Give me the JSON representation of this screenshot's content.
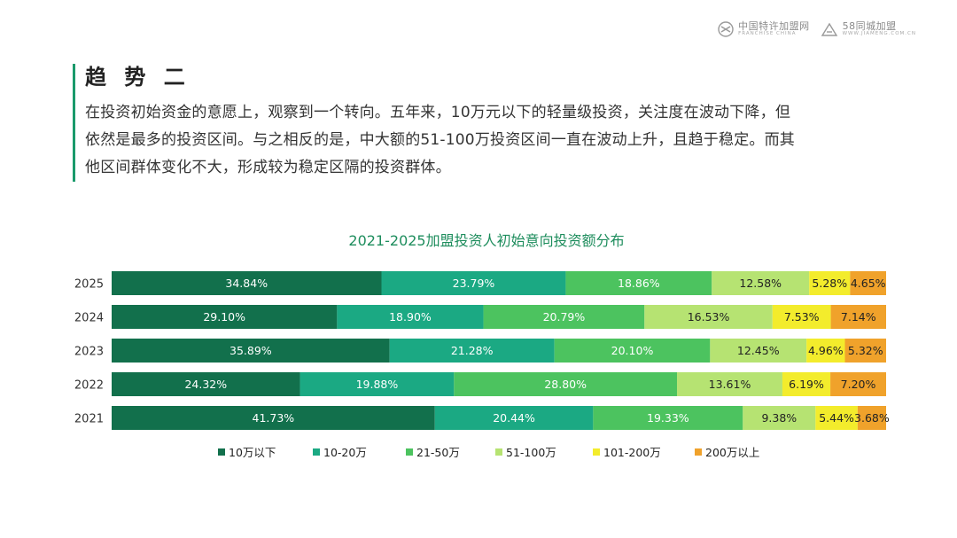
{
  "logos": {
    "left_main": "中国特许加盟网",
    "left_sub": "FRANCHISE CHINA",
    "right_main": "58同城加盟",
    "right_sub": "WWW.JIAMENG.COM.CN"
  },
  "header": {
    "title": "趋 势 二",
    "lines": [
      "在投资初始资金的意愿上，观察到一个转向。五年来，10万元以下的轻量级投资，关注度在波动下降，但",
      "依然是最多的投资区间。与之相反的是，中大额的51-100万投资区间一直在波动上升，且趋于稳定。而其",
      "他区间群体变化不大，形成较为稳定区隔的投资群体。"
    ]
  },
  "chart_data": {
    "type": "bar",
    "orientation": "horizontal",
    "stacked": "100%",
    "title": "2021-2025加盟投资人初始意向投资额分布",
    "categories": [
      "2025",
      "2024",
      "2023",
      "2022",
      "2021"
    ],
    "series": [
      {
        "name": "10万以下",
        "color": "#12704c",
        "values": [
          34.84,
          29.1,
          35.89,
          24.32,
          41.73
        ],
        "labels": [
          "34.84%",
          "29.10%",
          "35.89%",
          "24.32%",
          "41.73%"
        ]
      },
      {
        "name": "10-20万",
        "color": "#1ba983",
        "values": [
          23.79,
          18.9,
          21.28,
          19.88,
          20.44
        ],
        "labels": [
          "23.79%",
          "18.90%",
          "21.28%",
          "19.88%",
          "20.44%"
        ]
      },
      {
        "name": "21-50万",
        "color": "#4cc35f",
        "values": [
          18.86,
          20.79,
          20.1,
          28.8,
          19.33
        ],
        "labels": [
          "18.86%",
          "20.79%",
          "20.10%",
          "28.80%",
          "19.33%"
        ]
      },
      {
        "name": "51-100万",
        "color": "#b6e372",
        "values": [
          12.58,
          16.53,
          12.45,
          13.61,
          9.38
        ],
        "labels": [
          "12.58%",
          "16.53%",
          "12.45%",
          "13.61%",
          "9.38%"
        ]
      },
      {
        "name": "101-200万",
        "color": "#f3ec2c",
        "values": [
          5.28,
          7.53,
          4.96,
          6.19,
          5.44
        ],
        "labels": [
          "5.28%",
          "7.53%",
          "4.96%",
          "6.19%",
          "5.44%"
        ]
      },
      {
        "name": "200万以上",
        "color": "#f0a22b",
        "values": [
          4.65,
          7.14,
          5.32,
          7.2,
          3.68
        ],
        "labels": [
          "4.65%",
          "7.14%",
          "5.32%",
          "7.20%",
          "3.68%"
        ]
      }
    ],
    "legend": "bottom"
  }
}
